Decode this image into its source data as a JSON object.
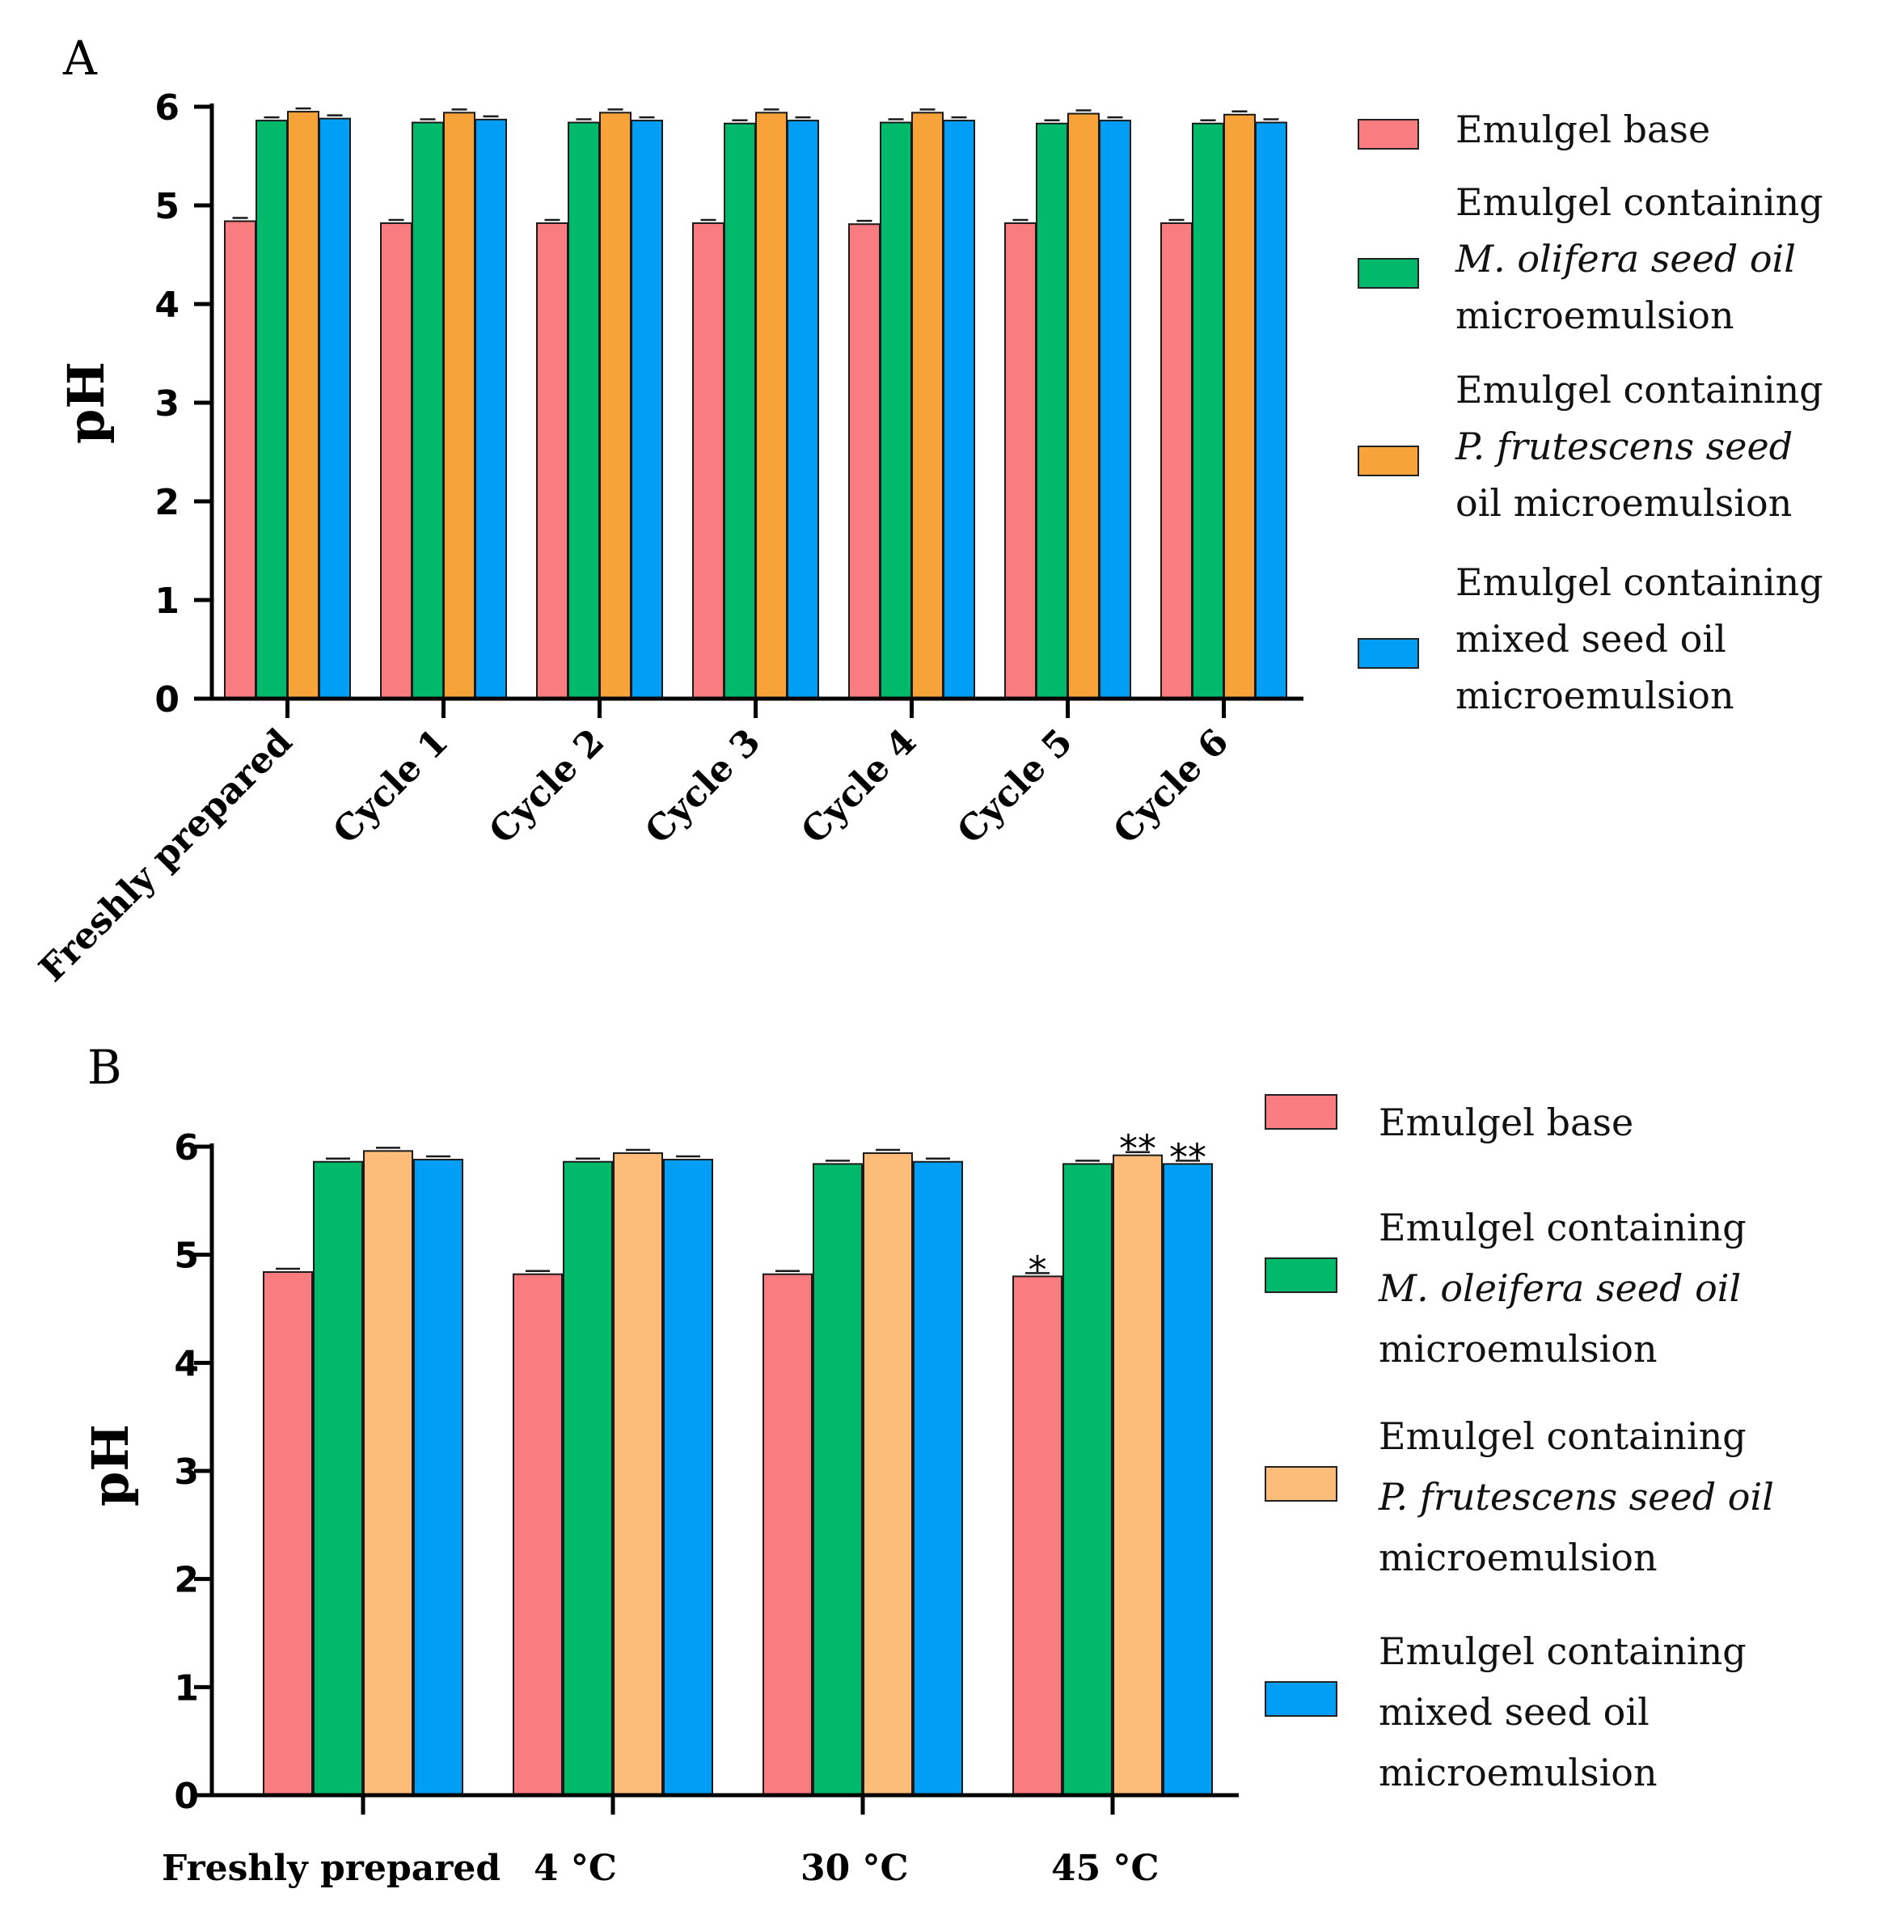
{
  "chart_data": [
    {
      "panel_label": "A",
      "type": "bar",
      "ylabel": "pH",
      "xlabel": "",
      "ylim": [
        0,
        6
      ],
      "yticks": [
        "0",
        "1",
        "2",
        "3",
        "4",
        "5",
        "6"
      ],
      "categories": [
        "Freshly prepared",
        "Cycle 1",
        "Cycle 2",
        "Cycle 3",
        "Cycle 4",
        "Cycle 5",
        "Cycle 6"
      ],
      "legend_position": "right",
      "series": [
        {
          "name": "Emulgel base",
          "legend_lines": [
            "Emulgel base"
          ],
          "color": "#F87C80",
          "values": [
            4.84,
            4.82,
            4.82,
            4.82,
            4.81,
            4.82,
            4.82
          ]
        },
        {
          "name": "Emulgel containing M. olifera seed oil microemulsion",
          "legend_lines": [
            "Emulgel containing",
            "M. olifera seed oil",
            "microemulsion"
          ],
          "color": "#00B96B",
          "values": [
            5.86,
            5.84,
            5.84,
            5.83,
            5.84,
            5.83,
            5.83
          ]
        },
        {
          "name": "Emulgel containing P. frutescens seed oil microemulsion",
          "legend_lines": [
            "Emulgel containing",
            "P. frutescens seed",
            "oil microemulsion"
          ],
          "color": "#F8A23A",
          "values": [
            5.95,
            5.94,
            5.94,
            5.94,
            5.94,
            5.93,
            5.92
          ]
        },
        {
          "name": "Emulgel containing mixed seed oil microemulsion",
          "legend_lines": [
            "Emulgel containing",
            "mixed seed oil",
            "microemulsion"
          ],
          "color": "#009FF5",
          "values": [
            5.88,
            5.87,
            5.86,
            5.86,
            5.86,
            5.86,
            5.84
          ]
        }
      ],
      "annotations": []
    },
    {
      "panel_label": "B",
      "type": "bar",
      "ylabel": "pH",
      "xlabel": "",
      "ylim": [
        0,
        6
      ],
      "yticks": [
        "0",
        "1",
        "2",
        "3",
        "4",
        "5",
        "6"
      ],
      "categories": [
        "Freshly prepared",
        "4 °C",
        "30 °C",
        "45 °C"
      ],
      "legend_position": "right",
      "series": [
        {
          "name": "Emulgel base",
          "legend_lines": [
            "Emulgel base"
          ],
          "color": "#F87C80",
          "values": [
            4.84,
            4.82,
            4.82,
            4.8
          ]
        },
        {
          "name": "Emulgel containing M. oleifera seed oil microemulsion",
          "legend_lines": [
            "Emulgel containing",
            "M. oleifera seed oil",
            "microemulsion"
          ],
          "color": "#00B96B",
          "values": [
            5.86,
            5.86,
            5.84,
            5.84
          ]
        },
        {
          "name": "Emulgel containing P. frutescens seed oil microemulsion",
          "legend_lines": [
            "Emulgel containing",
            "P. frutescens seed oil",
            "microemulsion"
          ],
          "color": "#FDBC7A",
          "values": [
            5.96,
            5.94,
            5.94,
            5.92
          ]
        },
        {
          "name": "Emulgel containing mixed seed oil microemulsion",
          "legend_lines": [
            "Emulgel containing",
            "mixed seed oil",
            "microemulsion"
          ],
          "color": "#009FF5",
          "values": [
            5.88,
            5.88,
            5.86,
            5.84
          ]
        }
      ],
      "annotations": [
        {
          "category": 3,
          "series": 0,
          "text": "*"
        },
        {
          "category": 3,
          "series": 2,
          "text": "**"
        },
        {
          "category": 3,
          "series": 3,
          "text": "**"
        }
      ]
    }
  ]
}
